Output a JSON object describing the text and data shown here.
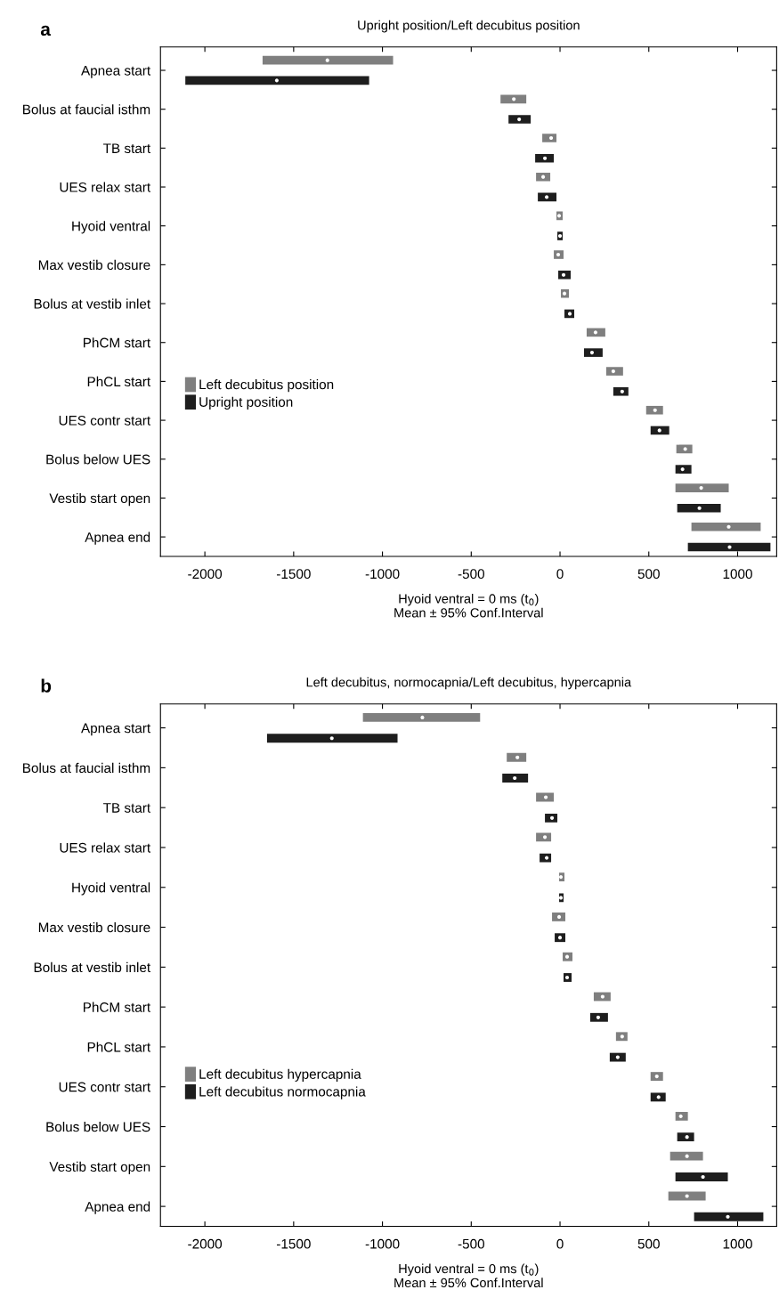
{
  "chart_data": [
    {
      "type": "bar",
      "orientation": "horizontal",
      "title": "Upright position/Left decubitus position",
      "xlabel": "Hyoid ventral = 0 ms (t$_{0}$)\nMean ± 95% Conf.Interval",
      "annotations": [
        "a"
      ],
      "categories": [
        "Apnea start",
        "Bolus at faucial isthm",
        "TB start",
        "UES relax start",
        "Hyoid ventral",
        "Max vestib closure",
        "Bolus at vestib inlet",
        "PhCM start",
        "PhCL start",
        "UES contr start",
        "Bolus below UES",
        "Vestib start open",
        "Apnea end"
      ],
      "series": [
        {
          "name": "Left decubitus position",
          "color": "#7f7f7f",
          "base": [
            -1675,
            -335,
            -100,
            -135,
            -20,
            -35,
            5,
            150,
            260,
            485,
            655,
            650,
            740
          ],
          "values": [
            735,
            145,
            80,
            80,
            35,
            55,
            45,
            105,
            95,
            95,
            90,
            300,
            390
          ]
        },
        {
          "name": "Upright position",
          "color": "#1e1e1e",
          "base": [
            -2110,
            -290,
            -140,
            -125,
            -15,
            -10,
            25,
            135,
            300,
            510,
            650,
            660,
            720
          ],
          "values": [
            1035,
            125,
            105,
            105,
            30,
            70,
            55,
            105,
            85,
            105,
            90,
            245,
            465
          ]
        },
        {
          "type": "scatter",
          "color": "#ffffff",
          "values": [
            -1310,
            -260,
            -50,
            -95,
            -5,
            -10,
            25,
            200,
            300,
            535,
            705,
            795,
            950
          ]
        },
        {
          "type": "scatter",
          "color": "#ffffff",
          "values": [
            -1595,
            -230,
            -85,
            -75,
            0,
            20,
            55,
            180,
            350,
            560,
            690,
            785,
            955
          ]
        }
      ],
      "xlim": [
        -2250,
        1220
      ],
      "xticks": [
        -2000,
        -1500,
        -1000,
        -500,
        0,
        500,
        1000
      ],
      "legend": "left",
      "grid": false
    },
    {
      "type": "bar",
      "orientation": "horizontal",
      "title": "Left decubitus, normocapnia/Left decubitus, hypercapnia",
      "xlabel": "Hyoid ventral = 0 ms (t$_{0}$)\nMean ± 95% Conf.Interval",
      "annotations": [
        "b"
      ],
      "categories": [
        "Apnea start",
        "Bolus at faucial isthm",
        "TB start",
        "UES relax start",
        "Hyoid ventral",
        "Max vestib closure",
        "Bolus at vestib inlet",
        "PhCM start",
        "PhCL start",
        "UES contr start",
        "Bolus below UES",
        "Vestib start open",
        "Apnea end"
      ],
      "series": [
        {
          "name": "Left decubitus hypercapnia",
          "color": "#7f7f7f",
          "base": [
            -1110,
            -300,
            -135,
            -135,
            -5,
            -45,
            15,
            190,
            315,
            510,
            650,
            620,
            610
          ],
          "values": [
            660,
            110,
            100,
            85,
            30,
            75,
            55,
            95,
            65,
            70,
            70,
            185,
            210
          ]
        },
        {
          "name": "Left decubitus normocapnia",
          "color": "#1e1e1e",
          "base": [
            -1650,
            -325,
            -85,
            -115,
            -5,
            -30,
            20,
            170,
            280,
            510,
            660,
            650,
            755
          ],
          "values": [
            735,
            145,
            70,
            65,
            25,
            60,
            45,
            100,
            90,
            85,
            95,
            295,
            390
          ]
        },
        {
          "type": "scatter",
          "color": "#ffffff",
          "values": [
            -775,
            -240,
            -80,
            -85,
            5,
            -5,
            40,
            240,
            350,
            545,
            680,
            715,
            715
          ]
        },
        {
          "type": "scatter",
          "color": "#ffffff",
          "values": [
            -1285,
            -255,
            -45,
            -75,
            5,
            0,
            40,
            215,
            325,
            555,
            715,
            805,
            945
          ]
        }
      ],
      "xlim": [
        -2250,
        1220
      ],
      "xticks": [
        -2000,
        -1500,
        -1000,
        -500,
        0,
        500,
        1000
      ],
      "legend": "bottom left",
      "grid": false
    }
  ]
}
